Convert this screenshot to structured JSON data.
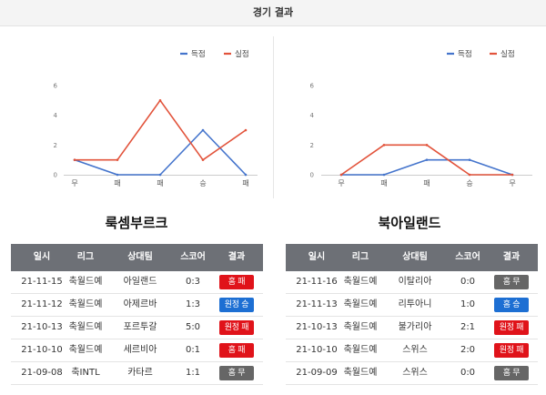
{
  "header": {
    "title": "경기 결과"
  },
  "table_headers": [
    "일시",
    "리그",
    "상대팀",
    "스코어",
    "결과"
  ],
  "colors": {
    "header_row_bg": "#6d7076",
    "scored": "#4474cc",
    "conceded": "#e2533b",
    "win": "#1d6fd3",
    "loss": "#e0131a",
    "draw": "#666666"
  },
  "teams": [
    {
      "name": "룩셈부르크",
      "matches": [
        {
          "date": "21-11-15",
          "league": "축월드예",
          "opponent": "아일랜드",
          "score": "0:3",
          "result": "홈 패",
          "result_color": "#e0131a"
        },
        {
          "date": "21-11-12",
          "league": "축월드예",
          "opponent": "아제르바",
          "score": "1:3",
          "result": "원정 승",
          "result_color": "#1d6fd3"
        },
        {
          "date": "21-10-13",
          "league": "축월드예",
          "opponent": "포르투갈",
          "score": "5:0",
          "result": "원정 패",
          "result_color": "#e0131a"
        },
        {
          "date": "21-10-10",
          "league": "축월드예",
          "opponent": "세르비아",
          "score": "0:1",
          "result": "홈 패",
          "result_color": "#e0131a"
        },
        {
          "date": "21-09-08",
          "league": "축INTL",
          "opponent": "카타르",
          "score": "1:1",
          "result": "홈 무",
          "result_color": "#666666"
        }
      ]
    },
    {
      "name": "북아일랜드",
      "matches": [
        {
          "date": "21-11-16",
          "league": "축월드예",
          "opponent": "이탈리아",
          "score": "0:0",
          "result": "홈 무",
          "result_color": "#666666"
        },
        {
          "date": "21-11-13",
          "league": "축월드예",
          "opponent": "리투아니",
          "score": "1:0",
          "result": "홈 승",
          "result_color": "#1d6fd3"
        },
        {
          "date": "21-10-13",
          "league": "축월드예",
          "opponent": "불가리아",
          "score": "2:1",
          "result": "원정 패",
          "result_color": "#e0131a"
        },
        {
          "date": "21-10-10",
          "league": "축월드예",
          "opponent": "스위스",
          "score": "2:0",
          "result": "원정 패",
          "result_color": "#e0131a"
        },
        {
          "date": "21-09-09",
          "league": "축월드예",
          "opponent": "스위스",
          "score": "0:0",
          "result": "홈 무",
          "result_color": "#666666"
        }
      ]
    }
  ],
  "chart_data": [
    {
      "type": "line",
      "x": [
        "무",
        "패",
        "패",
        "승",
        "패"
      ],
      "series": [
        {
          "name": "득점",
          "color": "#4474cc",
          "values": [
            1,
            0,
            0,
            3,
            0
          ]
        },
        {
          "name": "실점",
          "color": "#e2533b",
          "values": [
            1,
            1,
            5,
            1,
            3
          ]
        }
      ],
      "ylim": [
        0,
        6
      ],
      "yticks": [
        0,
        2,
        4,
        6
      ],
      "grid": false,
      "legend": "top-right"
    },
    {
      "type": "line",
      "x": [
        "무",
        "패",
        "패",
        "승",
        "무"
      ],
      "series": [
        {
          "name": "득점",
          "color": "#4474cc",
          "values": [
            0,
            0,
            1,
            1,
            0
          ]
        },
        {
          "name": "실점",
          "color": "#e2533b",
          "values": [
            0,
            2,
            2,
            0,
            0
          ]
        }
      ],
      "ylim": [
        0,
        6
      ],
      "yticks": [
        0,
        2,
        4,
        6
      ],
      "grid": false,
      "legend": "top-right"
    }
  ]
}
